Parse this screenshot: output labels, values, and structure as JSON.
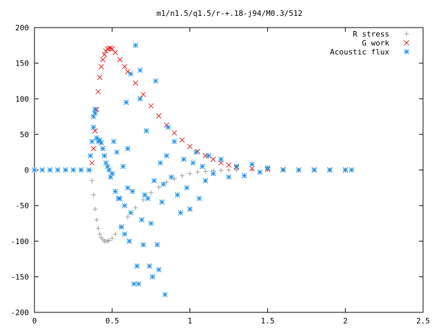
{
  "chart_data": {
    "type": "scatter",
    "title": "m1/n1.5/q1.5/r-+.18-j94/M0.3/512",
    "xlabel": "",
    "ylabel": "",
    "xlim": [
      0,
      2.5
    ],
    "ylim": [
      -200,
      200
    ],
    "x_ticks": [
      0,
      0.5,
      1,
      1.5,
      2,
      2.5
    ],
    "x_tick_labels": [
      "0",
      "0.5",
      "1",
      "1.5",
      "2",
      "2.5"
    ],
    "y_ticks": [
      -200,
      -150,
      -100,
      -50,
      0,
      50,
      100,
      150,
      200
    ],
    "y_tick_labels": [
      "-200",
      "-150",
      "-100",
      "-50",
      "0",
      "50",
      "100",
      "150",
      "200"
    ],
    "grid": false,
    "legend_position": "top-right",
    "series": [
      {
        "name": "R stress",
        "marker": "plus",
        "color": "#a0a0a0",
        "x": [
          0,
          0.1,
          0.2,
          0.3,
          0.36,
          0.37,
          0.38,
          0.39,
          0.4,
          0.41,
          0.42,
          0.43,
          0.44,
          0.45,
          0.46,
          0.47,
          0.48,
          0.5,
          0.52,
          0.55,
          0.6,
          0.65,
          0.7,
          0.75,
          0.8,
          0.85,
          0.9,
          0.95,
          1.0,
          1.05,
          1.1,
          1.15,
          1.2,
          1.25,
          1.3,
          1.4,
          1.5,
          1.6,
          1.7,
          1.8,
          1.9,
          2.0
        ],
        "y": [
          0,
          0,
          0,
          0,
          0,
          -15,
          -35,
          -55,
          -70,
          -82,
          -90,
          -95,
          -98,
          -100,
          -100,
          -100,
          -99,
          -96,
          -90,
          -80,
          -66,
          -53,
          -42,
          -32,
          -24,
          -17,
          -12,
          -8,
          -5,
          -3,
          -2,
          -1,
          -0.5,
          0,
          0,
          0,
          0,
          0,
          0,
          0,
          0,
          0
        ]
      },
      {
        "name": "G work",
        "marker": "cross",
        "color": "#e02020",
        "x": [
          0.37,
          0.38,
          0.39,
          0.4,
          0.41,
          0.42,
          0.43,
          0.44,
          0.45,
          0.46,
          0.47,
          0.48,
          0.49,
          0.5,
          0.52,
          0.55,
          0.58,
          0.6,
          0.65,
          0.7,
          0.75,
          0.8,
          0.85,
          0.9,
          0.95,
          1.0,
          1.05,
          1.1,
          1.15,
          1.2,
          1.25,
          1.3,
          1.4,
          1.5,
          1.6,
          1.7,
          1.8,
          1.9,
          2.0
        ],
        "y": [
          10,
          30,
          55,
          85,
          110,
          130,
          145,
          155,
          162,
          167,
          170,
          171,
          171,
          170,
          165,
          155,
          145,
          138,
          122,
          106,
          90,
          76,
          63,
          52,
          42,
          33,
          26,
          20,
          15,
          10,
          7,
          4,
          2,
          1,
          0.5,
          0,
          0,
          0,
          0
        ]
      },
      {
        "name": "Acoustic flux",
        "marker": "star",
        "color": "#1e90e6",
        "x": [
          0,
          0.05,
          0.1,
          0.15,
          0.2,
          0.25,
          0.3,
          0.35,
          0.36,
          0.37,
          0.38,
          0.38,
          0.39,
          0.39,
          0.4,
          0.41,
          0.42,
          0.43,
          0.44,
          0.45,
          0.46,
          0.47,
          0.48,
          0.49,
          0.5,
          0.51,
          0.52,
          0.53,
          0.54,
          0.55,
          0.56,
          0.57,
          0.58,
          0.58,
          0.59,
          0.6,
          0.6,
          0.61,
          0.62,
          0.62,
          0.63,
          0.64,
          0.65,
          0.66,
          0.67,
          0.68,
          0.68,
          0.69,
          0.7,
          0.71,
          0.72,
          0.73,
          0.74,
          0.75,
          0.76,
          0.77,
          0.78,
          0.79,
          0.8,
          0.81,
          0.82,
          0.83,
          0.84,
          0.85,
          0.86,
          0.88,
          0.9,
          0.92,
          0.94,
          0.96,
          0.98,
          1.0,
          1.02,
          1.04,
          1.06,
          1.08,
          1.1,
          1.12,
          1.15,
          1.2,
          1.25,
          1.3,
          1.35,
          1.4,
          1.45,
          1.5,
          1.6,
          1.7,
          1.8,
          1.9,
          2.0,
          2.04
        ],
        "y": [
          0,
          0,
          0,
          0,
          0,
          0,
          0,
          0,
          20,
          40,
          60,
          75,
          80,
          85,
          45,
          40,
          42,
          38,
          30,
          20,
          10,
          5,
          0,
          -10,
          -5,
          40,
          -30,
          25,
          -40,
          -40,
          -80,
          5,
          -50,
          -90,
          95,
          -25,
          30,
          -100,
          135,
          -60,
          -30,
          -160,
          175,
          -135,
          -160,
          100,
          140,
          -70,
          -105,
          -35,
          55,
          -40,
          -135,
          -75,
          -150,
          -15,
          125,
          -105,
          -140,
          10,
          -45,
          -20,
          -175,
          20,
          60,
          -10,
          40,
          -35,
          -60,
          15,
          -25,
          -55,
          10,
          25,
          -40,
          5,
          -15,
          20,
          -5,
          15,
          -10,
          5,
          -8,
          8,
          -3,
          3,
          0,
          0,
          0,
          0,
          0,
          0
        ]
      }
    ]
  }
}
